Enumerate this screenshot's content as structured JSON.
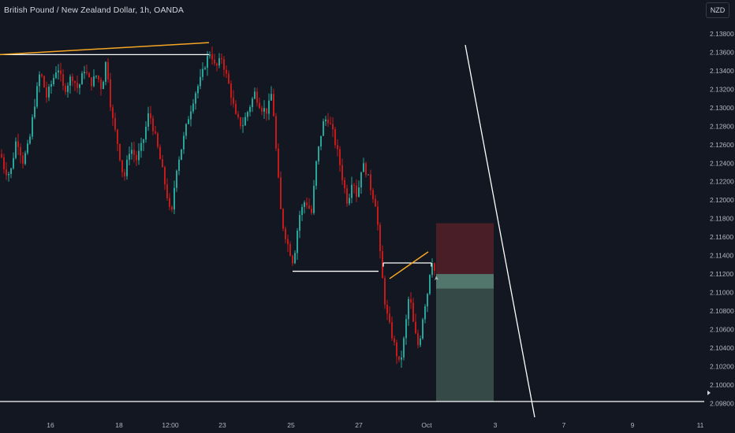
{
  "header": {
    "title": "British Pound / New Zealand Dollar, 1h, OANDA",
    "currency": "NZD"
  },
  "colors": {
    "background": "#131722",
    "up": "#26a69a",
    "down": "#c41a1a",
    "trendline": "#f5a623",
    "level_line": "#ffffff",
    "stop_zone": "#4a1e27",
    "target_zone": "#354a47"
  },
  "chart_data": {
    "type": "candlestick",
    "symbol": "British Pound / New Zealand Dollar",
    "interval": "1h",
    "source": "OANDA",
    "ylim": [
      2.0962,
      2.1394
    ],
    "y_ticks": [
      "2.13800",
      "2.13600",
      "2.13400",
      "2.13200",
      "2.13000",
      "2.12800",
      "2.12600",
      "2.12400",
      "2.12200",
      "2.12000",
      "2.11800",
      "2.11600",
      "2.11400",
      "2.11200",
      "2.11000",
      "2.10800",
      "2.10600",
      "2.10400",
      "2.10200",
      "2.10000",
      "2.09800"
    ],
    "x_ticks": [
      "16",
      "18",
      "12:00",
      "23",
      "25",
      "27",
      "Oct",
      "3",
      "7",
      "9",
      "11"
    ],
    "price_series": [
      [
        0,
        2.125
      ],
      [
        5,
        2.1232
      ],
      [
        12,
        2.1228
      ],
      [
        20,
        2.1268
      ],
      [
        28,
        2.1242
      ],
      [
        36,
        2.1262
      ],
      [
        42,
        2.13
      ],
      [
        50,
        2.134
      ],
      [
        58,
        2.1312
      ],
      [
        66,
        2.133
      ],
      [
        72,
        2.1346
      ],
      [
        80,
        2.1318
      ],
      [
        90,
        2.1335
      ],
      [
        98,
        2.132
      ],
      [
        106,
        2.1342
      ],
      [
        114,
        2.1326
      ],
      [
        122,
        2.1336
      ],
      [
        128,
        2.132
      ],
      [
        134,
        2.1354
      ],
      [
        140,
        2.1295
      ],
      [
        148,
        2.1262
      ],
      [
        156,
        2.1222
      ],
      [
        164,
        2.1258
      ],
      [
        172,
        2.1244
      ],
      [
        180,
        2.1262
      ],
      [
        188,
        2.1296
      ],
      [
        196,
        2.1268
      ],
      [
        204,
        2.1236
      ],
      [
        212,
        2.12
      ],
      [
        216,
        2.1178
      ],
      [
        222,
        2.1232
      ],
      [
        230,
        2.126
      ],
      [
        238,
        2.129
      ],
      [
        246,
        2.1315
      ],
      [
        254,
        2.1332
      ],
      [
        260,
        2.135
      ],
      [
        266,
        2.1362
      ],
      [
        272,
        2.1342
      ],
      [
        280,
        2.1354
      ],
      [
        290,
        2.1322
      ],
      [
        298,
        2.129
      ],
      [
        306,
        2.128
      ],
      [
        314,
        2.1298
      ],
      [
        322,
        2.1316
      ],
      [
        330,
        2.13
      ],
      [
        338,
        2.1296
      ],
      [
        344,
        2.1318
      ],
      [
        350,
        2.1242
      ],
      [
        356,
        2.1178
      ],
      [
        364,
        2.1152
      ],
      [
        371,
        2.1132
      ],
      [
        378,
        2.1182
      ],
      [
        386,
        2.12
      ],
      [
        394,
        2.1186
      ],
      [
        400,
        2.124
      ],
      [
        408,
        2.1282
      ],
      [
        414,
        2.129
      ],
      [
        420,
        2.1276
      ],
      [
        428,
        2.1248
      ],
      [
        434,
        2.122
      ],
      [
        440,
        2.1196
      ],
      [
        446,
        2.1226
      ],
      [
        452,
        2.1202
      ],
      [
        458,
        2.124
      ],
      [
        464,
        2.123
      ],
      [
        470,
        2.121
      ],
      [
        476,
        2.1194
      ],
      [
        482,
        2.113
      ],
      [
        488,
        2.1082
      ],
      [
        494,
        2.106
      ],
      [
        500,
        2.104
      ],
      [
        506,
        2.102
      ],
      [
        512,
        2.1054
      ],
      [
        518,
        2.11
      ],
      [
        524,
        2.106
      ],
      [
        530,
        2.104
      ],
      [
        536,
        2.108
      ],
      [
        542,
        2.1104
      ],
      [
        546,
        2.114
      ],
      [
        549,
        2.1126
      ],
      [
        552,
        2.1118
      ]
    ],
    "drawings": {
      "upper_trendline": {
        "from": [
          0,
          2.13575
        ],
        "to": [
          265,
          2.13705
        ]
      },
      "resistance_level": {
        "from": [
          0,
          2.13575
        ],
        "to": [
          265,
          2.13575
        ]
      },
      "support_level": {
        "from": [
          371,
          2.1123
        ],
        "to": [
          480,
          2.1123
        ]
      },
      "retest_box_level": {
        "from": [
          486,
          2.1132
        ],
        "to": [
          547,
          2.1132
        ]
      },
      "rising_trendline": {
        "from": [
          494,
          2.1115
        ],
        "to": [
          543,
          2.1144
        ]
      },
      "bottom_level": {
        "from": [
          0,
          2.0982
        ],
        "to": [
          893,
          2.0982
        ]
      },
      "projection_line": {
        "from": [
          590,
          2.1368
        ],
        "to": [
          678,
          2.0965
        ]
      },
      "short_position": {
        "x_start": 553,
        "x_end": 626,
        "entry": 2.112,
        "stop": 2.1175,
        "target": 2.0982,
        "entry_band_low": 2.1104
      }
    }
  }
}
